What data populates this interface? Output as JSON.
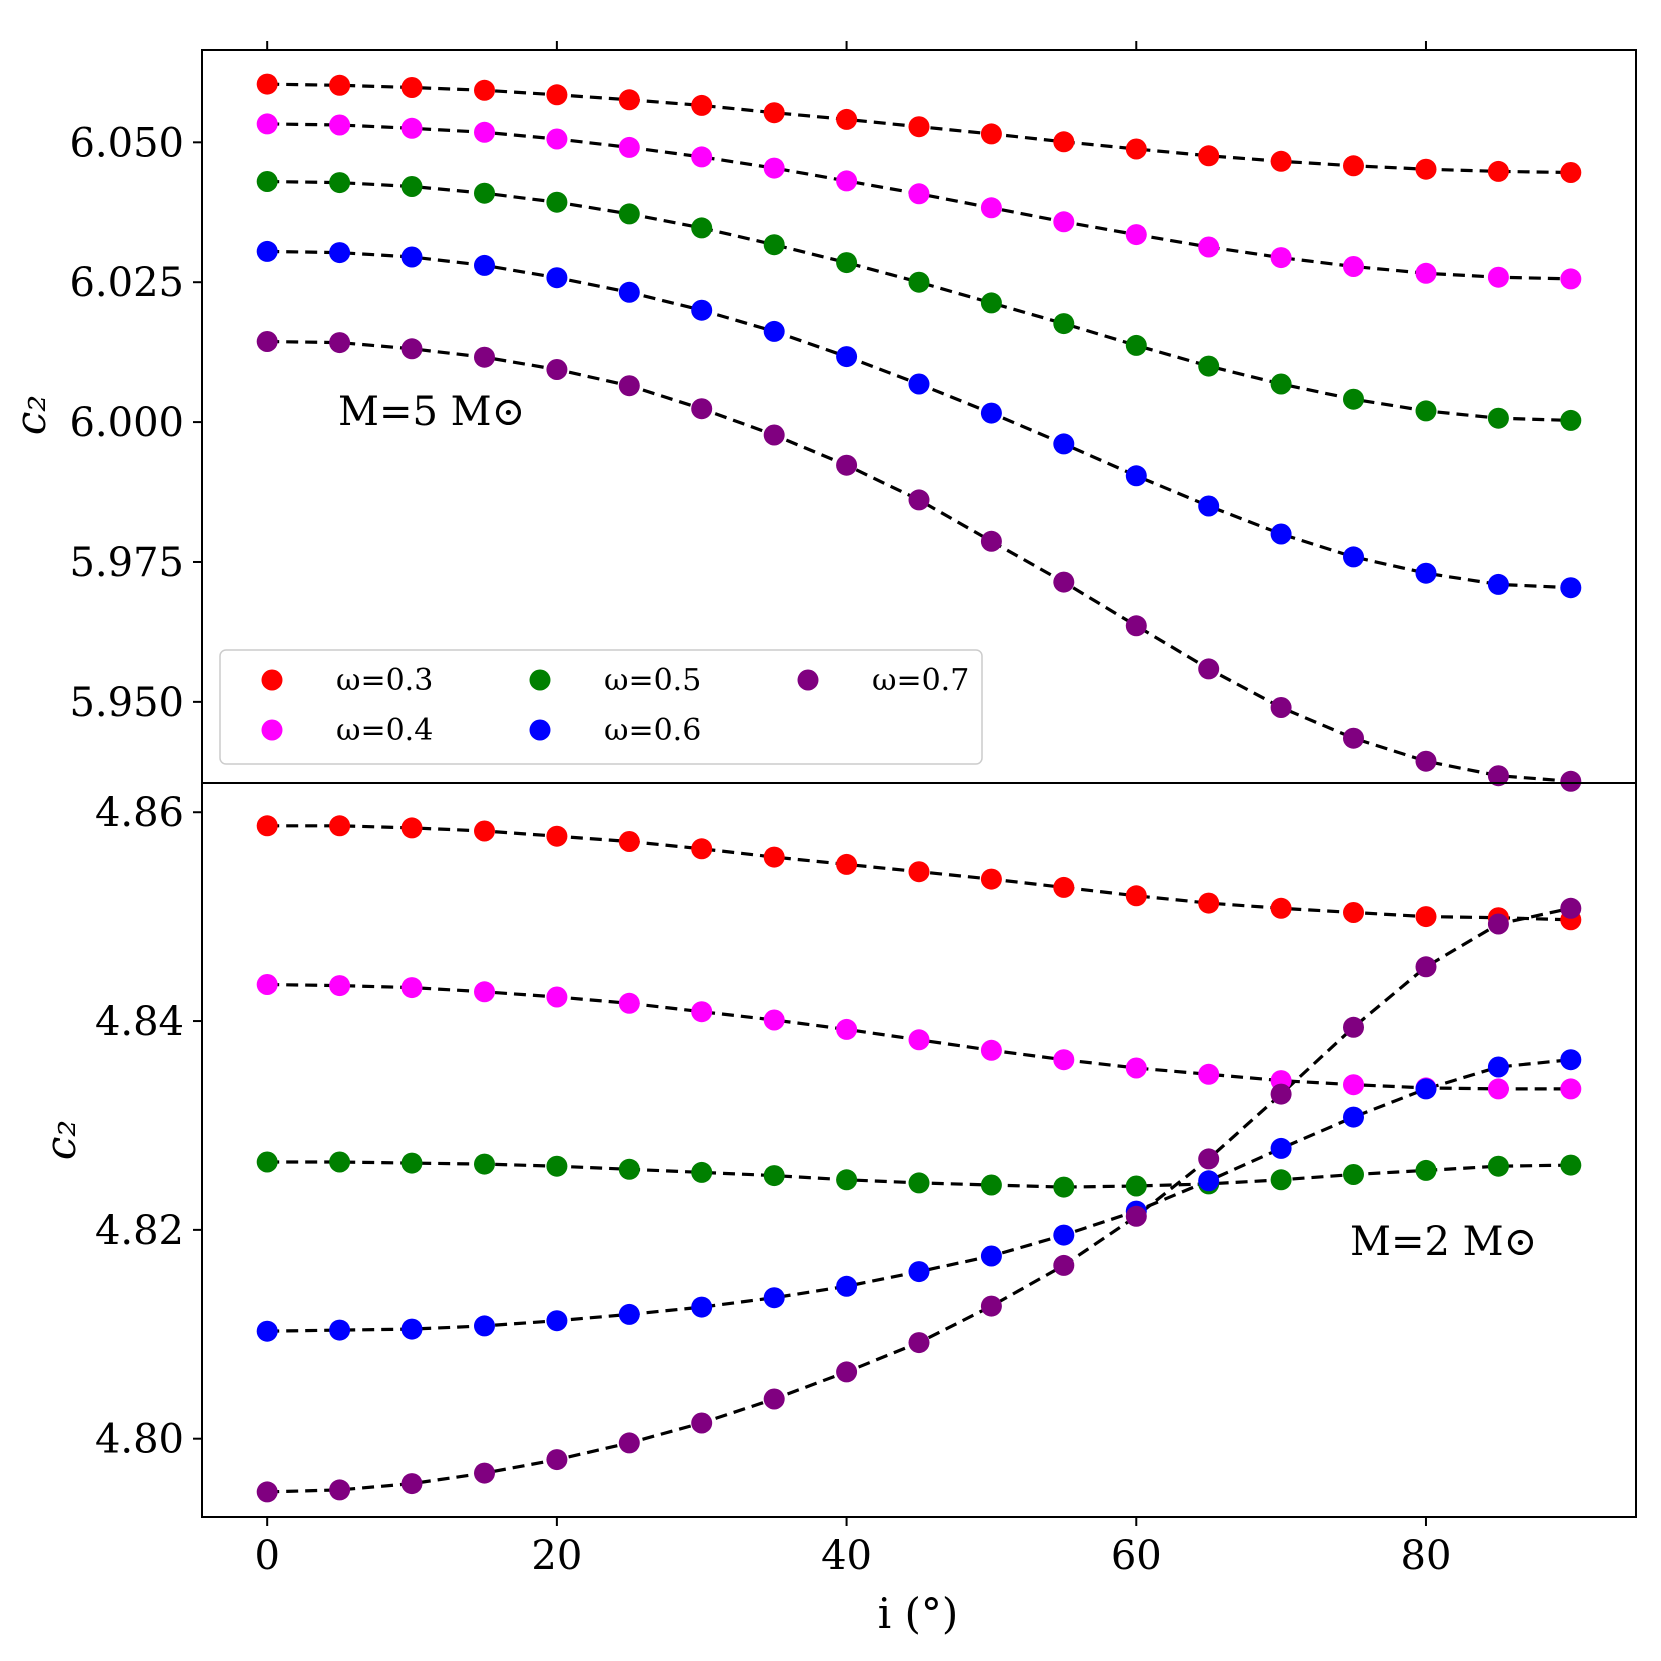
{
  "chart_data": [
    {
      "type": "scatter",
      "panel": "top",
      "annotation": "M=5 M⊙",
      "xlabel": "i (°)",
      "ylabel": "c₂",
      "xlim": [
        -4.5,
        94.5
      ],
      "ylim": [
        5.9355,
        6.0665
      ],
      "yticks": [
        5.95,
        5.975,
        6.0,
        6.025,
        6.05
      ],
      "ytick_labels": [
        "5.950",
        "5.975",
        "6.000",
        "6.025",
        "6.050"
      ],
      "x": [
        0,
        5,
        10,
        15,
        20,
        25,
        30,
        35,
        40,
        45,
        50,
        55,
        60,
        65,
        70,
        75,
        80,
        85,
        90
      ],
      "fit_line": "black dashed",
      "series": [
        {
          "name": "ω=0.3",
          "color": "#ff0000",
          "values": [
            6.0604,
            6.0602,
            6.0598,
            6.0593,
            6.0585,
            6.0576,
            6.0566,
            6.0553,
            6.0541,
            6.0528,
            6.0515,
            6.0501,
            6.0488,
            6.0476,
            6.0466,
            6.0458,
            6.0452,
            6.0448,
            6.0446
          ]
        },
        {
          "name": "ω=0.4",
          "color": "#ff00ff",
          "values": [
            6.0533,
            6.0531,
            6.0525,
            6.0518,
            6.0506,
            6.0491,
            6.0474,
            6.0454,
            6.0431,
            6.0408,
            6.0383,
            6.0358,
            6.0335,
            6.0313,
            6.0294,
            6.0278,
            6.0266,
            6.0259,
            6.0256
          ]
        },
        {
          "name": "ω=0.5",
          "color": "#008000",
          "values": [
            6.043,
            6.0428,
            6.0421,
            6.0409,
            6.0393,
            6.0372,
            6.0347,
            6.0317,
            6.0285,
            6.025,
            6.0213,
            6.0176,
            6.0137,
            6.01,
            6.0068,
            6.0041,
            6.002,
            6.0007,
            6.0003
          ]
        },
        {
          "name": "ω=0.6",
          "color": "#0000ff",
          "values": [
            6.0305,
            6.0303,
            6.0295,
            6.028,
            6.0258,
            6.0232,
            6.02,
            6.0162,
            6.0117,
            6.0068,
            6.0016,
            5.9961,
            5.9904,
            5.985,
            5.98,
            5.9759,
            5.973,
            5.971,
            5.9704
          ]
        },
        {
          "name": "ω=0.7",
          "color": "#800080",
          "values": [
            6.0144,
            6.0142,
            6.0131,
            6.0116,
            6.0094,
            6.0065,
            6.0024,
            5.9977,
            5.9923,
            5.9861,
            5.9787,
            5.9714,
            5.9636,
            5.9559,
            5.949,
            5.9435,
            5.9394,
            5.9368,
            5.9358
          ]
        }
      ],
      "legend": {
        "placement": "lower-left",
        "entries": [
          "ω=0.3",
          "ω=0.4",
          "ω=0.5",
          "ω=0.6",
          "ω=0.7"
        ],
        "colors": [
          "#ff0000",
          "#ff00ff",
          "#008000",
          "#0000ff",
          "#800080"
        ]
      }
    },
    {
      "type": "scatter",
      "panel": "bottom",
      "annotation": "M=2 M⊙",
      "xlabel": "i (°)",
      "ylabel": "c₂",
      "xlim": [
        -4.5,
        94.5
      ],
      "ylim": [
        4.7925,
        4.8628
      ],
      "yticks": [
        4.8,
        4.82,
        4.84,
        4.86
      ],
      "ytick_labels": [
        "4.80",
        "4.82",
        "4.84",
        "4.86"
      ],
      "xticks": [
        0,
        20,
        40,
        60,
        80
      ],
      "xtick_labels": [
        "0",
        "20",
        "40",
        "60",
        "80"
      ],
      "x": [
        0,
        5,
        10,
        15,
        20,
        25,
        30,
        35,
        40,
        45,
        50,
        55,
        60,
        65,
        70,
        75,
        80,
        85,
        90
      ],
      "fit_line": "black dashed",
      "series": [
        {
          "name": "ω=0.3",
          "color": "#ff0000",
          "values": [
            4.8587,
            4.8587,
            4.8585,
            4.8582,
            4.8577,
            4.8572,
            4.8565,
            4.8557,
            4.855,
            4.8543,
            4.8536,
            4.8528,
            4.852,
            4.8513,
            4.8508,
            4.8504,
            4.85,
            4.8499,
            4.8497
          ]
        },
        {
          "name": "ω=0.4",
          "color": "#ff00ff",
          "values": [
            4.8435,
            4.8434,
            4.8432,
            4.8428,
            4.8423,
            4.8417,
            4.8409,
            4.8401,
            4.8392,
            4.8382,
            4.8372,
            4.8363,
            4.8355,
            4.8349,
            4.8343,
            4.8339,
            4.8336,
            4.8335,
            4.8335
          ]
        },
        {
          "name": "ω=0.5",
          "color": "#008000",
          "values": [
            4.8265,
            4.8265,
            4.8264,
            4.8263,
            4.8261,
            4.8258,
            4.8255,
            4.8252,
            4.8248,
            4.8245,
            4.8243,
            4.8241,
            4.8242,
            4.8244,
            4.8248,
            4.8253,
            4.8257,
            4.8261,
            4.8262
          ]
        },
        {
          "name": "ω=0.6",
          "color": "#0000ff",
          "values": [
            4.8103,
            4.8104,
            4.8105,
            4.8108,
            4.8113,
            4.8119,
            4.8126,
            4.8135,
            4.8146,
            4.816,
            4.8175,
            4.8195,
            4.8218,
            4.8247,
            4.8278,
            4.8308,
            4.8335,
            4.8356,
            4.8363
          ]
        },
        {
          "name": "ω=0.7",
          "color": "#800080",
          "values": [
            4.7949,
            4.7951,
            4.7957,
            4.7967,
            4.798,
            4.7996,
            4.8015,
            4.8038,
            4.8064,
            4.8092,
            4.8127,
            4.8166,
            4.8213,
            4.8268,
            4.833,
            4.8394,
            4.8452,
            4.8493,
            4.8508
          ]
        }
      ]
    }
  ]
}
